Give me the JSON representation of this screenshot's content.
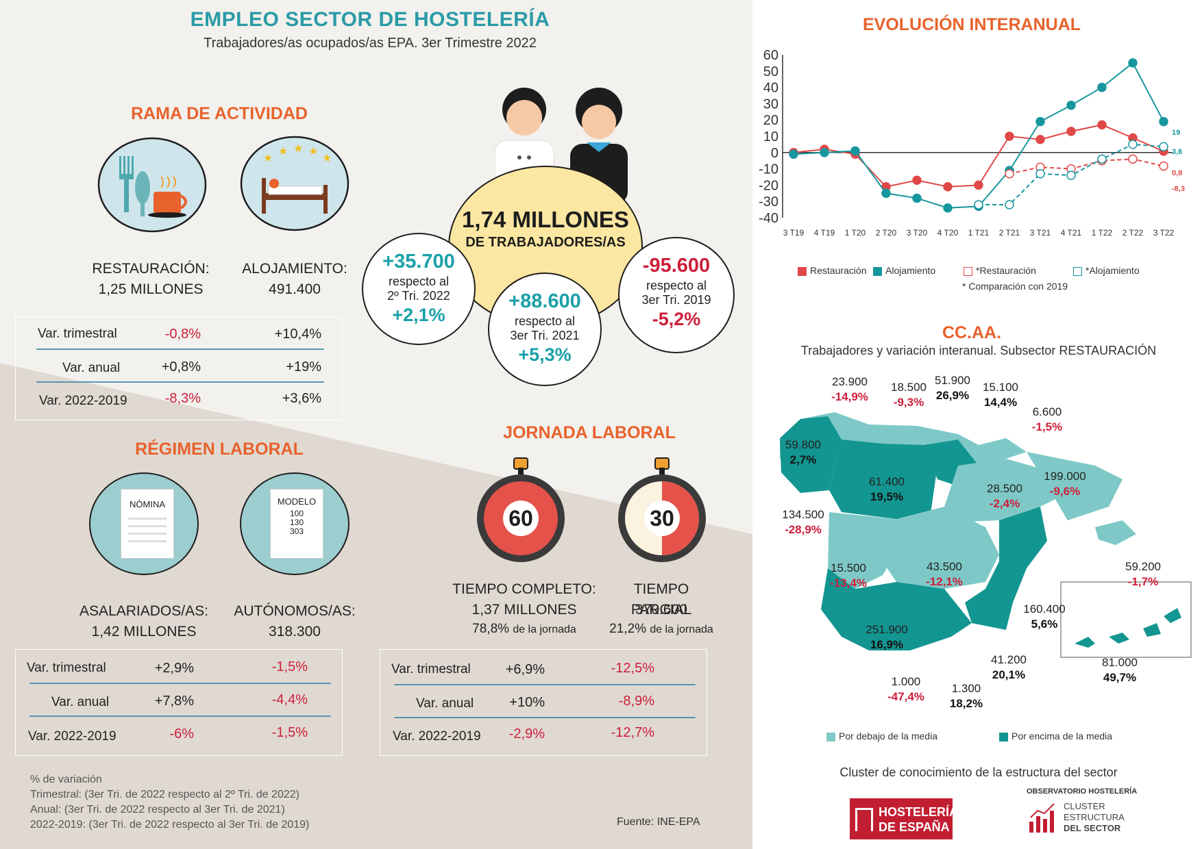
{
  "header": {
    "title": "EMPLEO SECTOR DE HOSTELERÍA",
    "subtitle": "Trabajadores/as ocupados/as EPA. 3er Trimestre  2022"
  },
  "rama": {
    "title": "RAMA DE ACTIVIDAD",
    "restauracion_label": "RESTAURACIÓN:",
    "restauracion_value": "1,25 MILLONES",
    "alojamiento_label": "ALOJAMIENTO:",
    "alojamiento_value": "491.400",
    "rows": [
      {
        "label": "Var. trimestral",
        "a": "-0,8%",
        "b": "+10,4%"
      },
      {
        "label": "Var. anual",
        "a": "+0,8%",
        "b": "+19%"
      },
      {
        "label": "Var. 2022-2019",
        "a": "-8,3%",
        "b": "+3,6%"
      }
    ]
  },
  "central": {
    "main_value": "1,74 MILLONES",
    "main_label": "DE TRABAJADORES/AS",
    "b1_value": "+35.700",
    "b1_text1": "respecto al",
    "b1_text2": "2º Tri. 2022",
    "b1_pct": "+2,1%",
    "b2_value": "+88.600",
    "b2_text1": "respecto al",
    "b2_text2": "3er Tri. 2021",
    "b2_pct": "+5,3%",
    "b3_value": "-95.600",
    "b3_text1": "respecto al",
    "b3_text2": "3er Tri. 2019",
    "b3_pct": "-5,2%"
  },
  "regimen": {
    "title": "RÉGIMEN LABORAL",
    "doc1_text": "NÓMINA",
    "doc2_text": "MODELO",
    "doc2_lines": [
      "100",
      "130",
      "303"
    ],
    "asal_label": "ASALARIADOS/AS:",
    "asal_value": "1,42 MILLONES",
    "auto_label": "AUTÓNOMOS/AS:",
    "auto_value": "318.300",
    "rows": [
      {
        "label": "Var. trimestral",
        "a": "+2,9%",
        "b": "-1,5%"
      },
      {
        "label": "Var. anual",
        "a": "+7,8%",
        "b": "-4,4%"
      },
      {
        "label": "Var. 2022-2019",
        "a": "-6%",
        "b": "-1,5%"
      }
    ]
  },
  "jornada": {
    "title": "JORNADA LABORAL",
    "clock1": "60",
    "clock2": "30",
    "completo_label": "TIEMPO COMPLETO:",
    "completo_value": "1,37 MILLONES",
    "completo_pct": "78,8%",
    "completo_pct_suffix": "de la jornada",
    "parcial_label": "TIEMPO PARCIAL",
    "parcial_value": "370.600",
    "parcial_pct": "21,2%",
    "parcial_pct_suffix": "de la jornada",
    "rows": [
      {
        "label": "Var. trimestral",
        "a": "+6,9%",
        "b": "-12,5%"
      },
      {
        "label": "Var. anual",
        "a": "+10%",
        "b": "-8,9%"
      },
      {
        "label": "Var. 2022-2019",
        "a": "-2,9%",
        "b": "-12,7%"
      }
    ]
  },
  "notes": {
    "l1": "% de variación",
    "l2": "Trimestral: (3er Tri. de 2022 respecto al 2º Tri. de 2022)",
    "l3": "Anual: (3er Tri. de 2022 respecto al 3er Tri. de 2021)",
    "l4": "2022-2019: (3er Tri. de 2022 respecto al  3er Tri. de 2019)",
    "fuente": "Fuente: INE-EPA"
  },
  "evolucion": {
    "title": "EVOLUCIÓN INTERANUAL",
    "legend": [
      "Restauración",
      "Alojamiento",
      "*Restauración",
      "*Alojamiento"
    ],
    "footnote": "* Comparación con 2019",
    "end_labels": {
      "aloj": "19",
      "aloj19": "3,6",
      "rest": "0,8",
      "rest19": "-8,3"
    }
  },
  "chart_data": {
    "type": "line",
    "categories": [
      "3 T19",
      "4 T19",
      "1 T20",
      "2 T20",
      "3 T20",
      "4 T20",
      "1 T21",
      "2 T21",
      "3 T21",
      "4 T21",
      "1 T22",
      "2 T22",
      "3 T22"
    ],
    "ylim": [
      -40,
      60
    ],
    "yticks": [
      60,
      50,
      40,
      30,
      20,
      10,
      0,
      -10,
      -20,
      -30,
      -40
    ],
    "series": [
      {
        "name": "Restauración",
        "style": "solid",
        "color": "#e04848",
        "values": [
          0,
          2,
          -1,
          -21,
          -17,
          -21,
          -20,
          10,
          8,
          13,
          17,
          9,
          0.8
        ]
      },
      {
        "name": "Alojamiento",
        "style": "solid",
        "color": "#17969e",
        "values": [
          -1,
          0,
          1,
          -25,
          -28,
          -34,
          -33,
          -11,
          19,
          29,
          40,
          55,
          19
        ]
      },
      {
        "name": "*Restauración",
        "style": "dashed",
        "color": "#e04848",
        "values": [
          null,
          null,
          null,
          null,
          null,
          null,
          null,
          -13,
          -9,
          -10,
          -5,
          -4,
          -8.3
        ]
      },
      {
        "name": "*Alojamiento",
        "style": "dashed",
        "color": "#17969e",
        "values": [
          null,
          null,
          null,
          null,
          null,
          null,
          -32,
          -32,
          -13,
          -14,
          -4,
          5,
          3.6
        ]
      }
    ]
  },
  "ccaa": {
    "title": "CC.AA.",
    "subtitle": "Trabajadores y variación interanual. Subsector RESTAURACIÓN",
    "regions": [
      {
        "name": "asturias",
        "value": "23.900",
        "pct": "-14,9%",
        "above": false
      },
      {
        "name": "cantabria",
        "value": "18.500",
        "pct": "-9,3%",
        "above": false
      },
      {
        "name": "pais-vasco",
        "value": "51.900",
        "pct": "26,9%",
        "above": true
      },
      {
        "name": "navarra",
        "value": "15.100",
        "pct": "14,4%",
        "above": true
      },
      {
        "name": "la-rioja",
        "value": "6.600",
        "pct": "-1,5%",
        "above": false
      },
      {
        "name": "galicia",
        "value": "59.800",
        "pct": "2,7%",
        "above": true
      },
      {
        "name": "castilla-leon",
        "value": "61.400",
        "pct": "19,5%",
        "above": true
      },
      {
        "name": "aragon",
        "value": "28.500",
        "pct": "-2,4%",
        "above": false
      },
      {
        "name": "cataluna",
        "value": "199.000",
        "pct": "-9,6%",
        "above": false
      },
      {
        "name": "madrid",
        "value": "134.500",
        "pct": "-28,9%",
        "above": false
      },
      {
        "name": "extremadura",
        "value": "15.500",
        "pct": "-13,4%",
        "above": false
      },
      {
        "name": "castilla-la-mancha",
        "value": "43.500",
        "pct": "-12,1%",
        "above": false
      },
      {
        "name": "baleares",
        "value": "59.200",
        "pct": "-1,7%",
        "above": false
      },
      {
        "name": "valencia",
        "value": "160.400",
        "pct": "5,6%",
        "above": true
      },
      {
        "name": "andalucia",
        "value": "251.900",
        "pct": "16,9%",
        "above": true
      },
      {
        "name": "murcia",
        "value": "41.200",
        "pct": "20,1%",
        "above": true
      },
      {
        "name": "ceuta",
        "value": "1.000",
        "pct": "-47,4%",
        "above": false
      },
      {
        "name": "melilla",
        "value": "1.300",
        "pct": "18,2%",
        "above": true
      },
      {
        "name": "canarias",
        "value": "81.000",
        "pct": "49,7%",
        "above": true
      }
    ],
    "legend_below": "Por debajo de la media",
    "legend_above": "Por encima de la media",
    "color_below": "#7ec9c7",
    "color_above": "#139591"
  },
  "footer": {
    "cluster": "Cluster de conocimiento de la estructura del sector",
    "logo1_line1": "HOSTELERÍA",
    "logo1_line2": "DE ESPAÑA",
    "obs": "OBSERVATORIO HOSTELERÍA",
    "logo2_line1": "CLUSTER",
    "logo2_line2": "ESTRUCTURA",
    "logo2_line3": "DEL SECTOR"
  }
}
